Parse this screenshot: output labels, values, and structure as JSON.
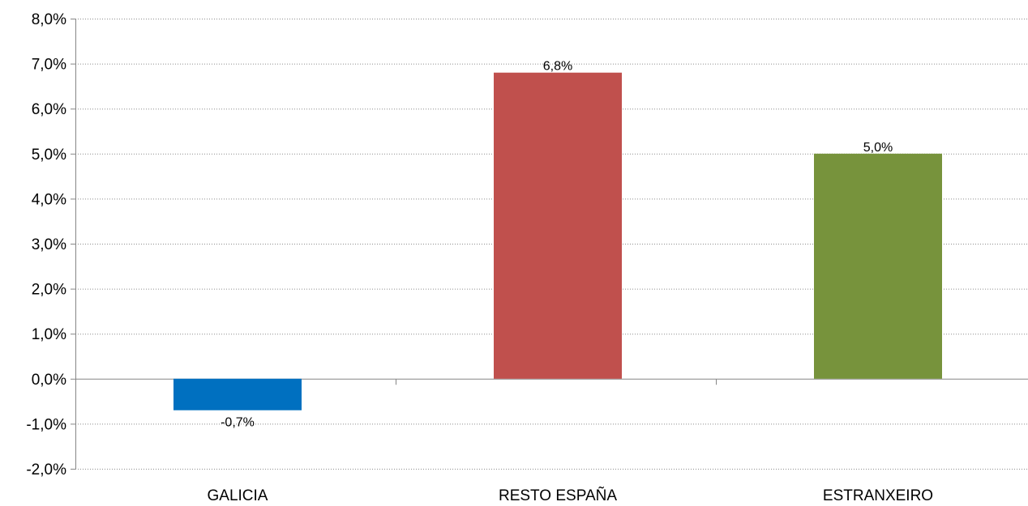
{
  "chart_data": {
    "type": "bar",
    "categories": [
      "GALICIA",
      "RESTO ESPAÑA",
      "ESTRANXEIRO"
    ],
    "values": [
      -0.7,
      6.8,
      5.0
    ],
    "value_labels": [
      "-0,7%",
      "6,8%",
      "5,0%"
    ],
    "bar_colors": [
      "#0070c0",
      "#c0504d",
      "#77933c"
    ],
    "title": "",
    "xlabel": "",
    "ylabel": "",
    "ylim": [
      -2,
      8
    ],
    "y_ticks": [
      8,
      7,
      6,
      5,
      4,
      3,
      2,
      1,
      0,
      -1,
      -2
    ],
    "y_tick_labels": [
      "8,0%",
      "7,0%",
      "6,0%",
      "5,0%",
      "4,0%",
      "3,0%",
      "2,0%",
      "1,0%",
      "0,0%",
      "-1,0%",
      "-2,0%"
    ],
    "grid": true,
    "legend": "none"
  }
}
